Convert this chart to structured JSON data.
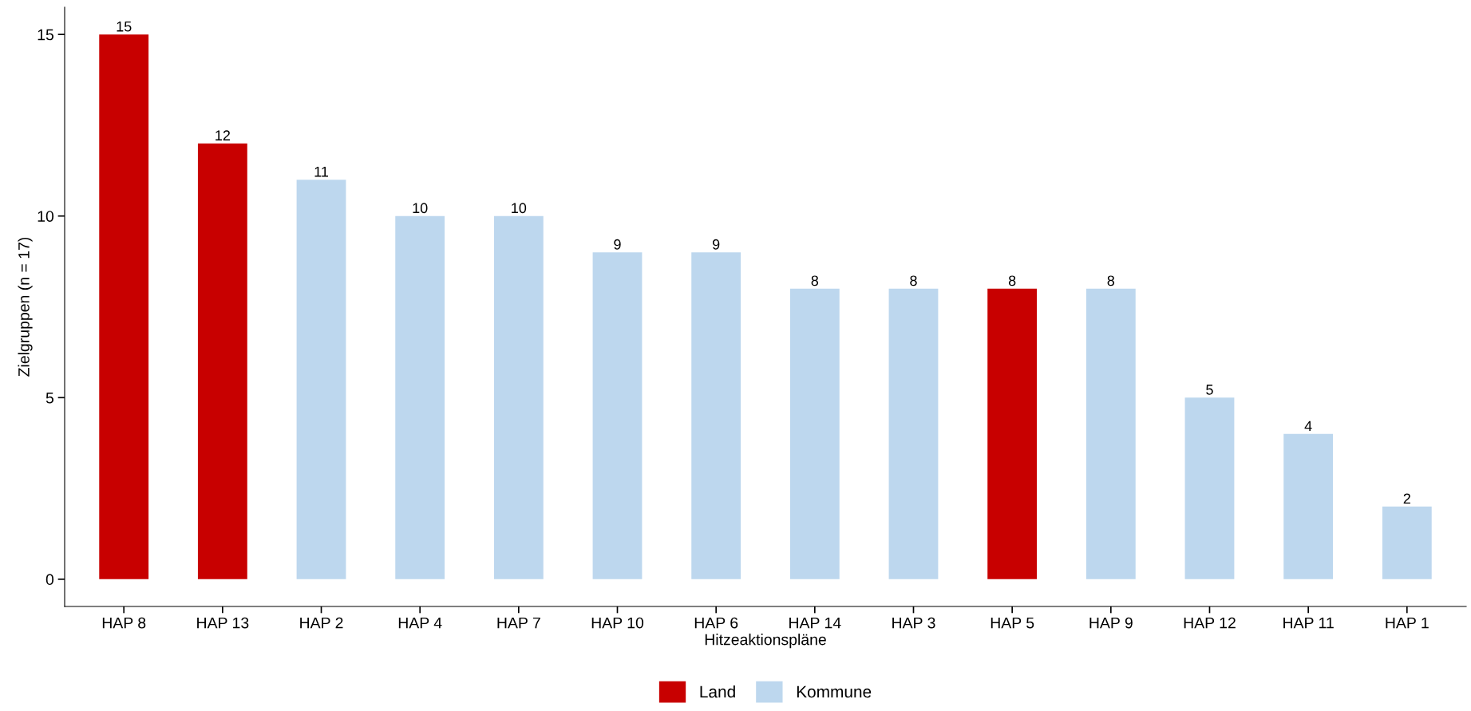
{
  "chart_data": {
    "type": "bar",
    "xlabel": "Hitzeaktionspläne",
    "ylabel": "Zielgruppen (n = 17)",
    "categories": [
      "HAP 8",
      "HAP 13",
      "HAP 2",
      "HAP 4",
      "HAP 7",
      "HAP 10",
      "HAP 6",
      "HAP 14",
      "HAP 3",
      "HAP 5",
      "HAP 9",
      "HAP 12",
      "HAP 11",
      "HAP 1"
    ],
    "series": [
      {
        "name": "Land",
        "color": "#c80000",
        "values": [
          15,
          12,
          null,
          null,
          null,
          null,
          null,
          null,
          null,
          8,
          null,
          null,
          null,
          null
        ]
      },
      {
        "name": "Kommune",
        "color": "#bdd7ee",
        "values": [
          null,
          null,
          11,
          10,
          10,
          9,
          9,
          8,
          8,
          null,
          8,
          5,
          4,
          2
        ]
      }
    ],
    "ylim": [
      -0.75,
      15.75
    ],
    "yticks": [
      0,
      5,
      10,
      15
    ],
    "data_labels": true,
    "grid": false,
    "legend": "bottom"
  }
}
